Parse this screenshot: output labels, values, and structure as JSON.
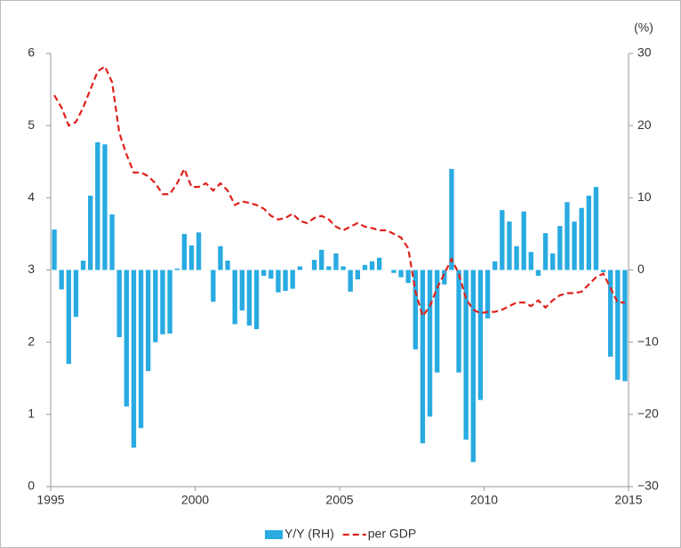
{
  "chart_data": {
    "type": "bar-line",
    "y2_unit": "(%)",
    "x": [
      1995.125,
      1995.375,
      1995.625,
      1995.875,
      1996.125,
      1996.375,
      1996.625,
      1996.875,
      1997.125,
      1997.375,
      1997.625,
      1997.875,
      1998.125,
      1998.375,
      1998.625,
      1998.875,
      1999.125,
      1999.375,
      1999.625,
      1999.875,
      2000.125,
      2000.375,
      2000.625,
      2000.875,
      2001.125,
      2001.375,
      2001.625,
      2001.875,
      2002.125,
      2002.375,
      2002.625,
      2002.875,
      2003.125,
      2003.375,
      2003.625,
      2003.875,
      2004.125,
      2004.375,
      2004.625,
      2004.875,
      2005.125,
      2005.375,
      2005.625,
      2005.875,
      2006.125,
      2006.375,
      2006.625,
      2006.875,
      2007.125,
      2007.375,
      2007.625,
      2007.875,
      2008.125,
      2008.375,
      2008.625,
      2008.875,
      2009.125,
      2009.375,
      2009.625,
      2009.875,
      2010.125,
      2010.375,
      2010.625,
      2010.875,
      2011.125,
      2011.375,
      2011.625,
      2011.875,
      2012.125,
      2012.375,
      2012.625,
      2012.875,
      2013.125,
      2013.375,
      2013.625,
      2013.875,
      2014.125,
      2014.375,
      2014.625,
      2014.875
    ],
    "series": [
      {
        "name": "Y/Y (RH)",
        "kind": "bar",
        "axis": "y2",
        "color": "#29abe2",
        "values": [
          5.6,
          -2.7,
          -13,
          -6.5,
          1.3,
          10.3,
          17.7,
          17.4,
          7.7,
          -9.3,
          -18.9,
          -24.6,
          -21.9,
          -14,
          -10,
          -8.9,
          -8.8,
          0.2,
          5,
          3.4,
          5.2,
          0,
          -4.4,
          3.3,
          1.3,
          -7.5,
          -5.6,
          -7.7,
          -8.2,
          -0.8,
          -1.2,
          -3.1,
          -2.9,
          -2.6,
          0.5,
          0,
          1.4,
          2.8,
          0.5,
          2.3,
          0.5,
          -3,
          -1.3,
          0.7,
          1.2,
          1.7,
          0,
          -0.4,
          -1,
          -1.8,
          -11,
          -24,
          -20.3,
          -14.2,
          -2,
          14,
          -14.2,
          -23.5,
          -26.6,
          -18,
          -6.7,
          1.2,
          8.3,
          6.7,
          3.3,
          8.1,
          2.5,
          -0.8,
          5.1,
          2.3,
          6.1,
          9.4,
          6.7,
          8.6,
          10.3,
          11.5,
          -0.3,
          -12,
          -15.2,
          -15.4
        ]
      },
      {
        "name": "per GDP",
        "kind": "line",
        "axis": "y",
        "color": "#e0201b",
        "dash": "7,4",
        "values": [
          5.42,
          5.25,
          5.0,
          5.05,
          5.25,
          5.5,
          5.75,
          5.82,
          5.6,
          4.9,
          4.6,
          4.35,
          4.35,
          4.3,
          4.2,
          4.05,
          4.05,
          4.2,
          4.4,
          4.15,
          4.15,
          4.2,
          4.1,
          4.2,
          4.1,
          3.9,
          3.95,
          3.93,
          3.9,
          3.85,
          3.75,
          3.7,
          3.72,
          3.78,
          3.68,
          3.65,
          3.72,
          3.75,
          3.7,
          3.6,
          3.55,
          3.6,
          3.65,
          3.6,
          3.58,
          3.55,
          3.55,
          3.5,
          3.45,
          3.3,
          2.7,
          2.36,
          2.5,
          2.75,
          2.95,
          3.15,
          2.95,
          2.6,
          2.45,
          2.4,
          2.42,
          2.42,
          2.45,
          2.5,
          2.55,
          2.55,
          2.5,
          2.58,
          2.48,
          2.58,
          2.65,
          2.68,
          2.68,
          2.7,
          2.8,
          2.9,
          2.95,
          2.75,
          2.55,
          2.55
        ]
      }
    ],
    "xlim": [
      1995,
      2015
    ],
    "xticks": [
      1995,
      2000,
      2005,
      2010,
      2015
    ],
    "ylim": [
      0,
      6
    ],
    "yticks": [
      0,
      1,
      2,
      3,
      4,
      5,
      6
    ],
    "y2lim": [
      -30,
      30
    ],
    "y2ticks": [
      {
        "value": -30,
        "label": "−30"
      },
      {
        "value": -20,
        "label": "−20"
      },
      {
        "value": -10,
        "label": "−10"
      },
      0,
      10,
      20,
      30
    ],
    "legend": "bottom"
  }
}
